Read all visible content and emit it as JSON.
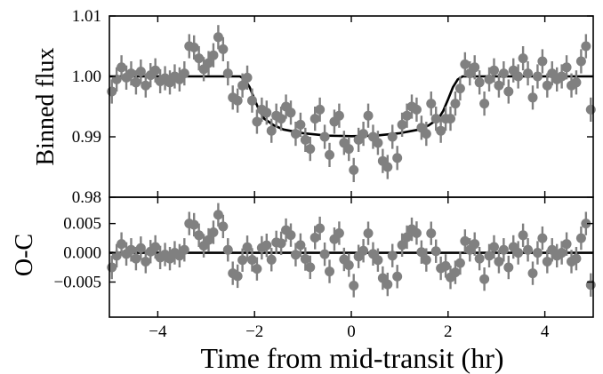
{
  "chart_data": {
    "type": "scatter",
    "xlabel": "Time from mid-transit (hr)",
    "xlim": [
      -5,
      5
    ],
    "xticks": [
      "−4",
      "−2",
      "0",
      "2",
      "4"
    ],
    "xtick_values": [
      -4,
      -2,
      0,
      2,
      4
    ],
    "colors": {
      "points": "#808080",
      "model": "#000000",
      "axes": "#000000"
    },
    "panels": [
      {
        "id": "flux",
        "ylabel": "Binned flux",
        "ylim": [
          0.98,
          1.01
        ],
        "yticks": [
          "0.98",
          "0.99",
          "1.00",
          "1.01"
        ],
        "ytick_values": [
          0.98,
          0.99,
          1.0,
          1.01
        ],
        "model_name": "transit model",
        "model": {
          "x": [
            -5.0,
            -2.3,
            -2.2,
            -2.1,
            -2.0,
            -1.9,
            -1.8,
            -1.6,
            -1.4,
            -1.0,
            -0.5,
            0.0,
            0.5,
            1.0,
            1.4,
            1.6,
            1.8,
            1.9,
            2.0,
            2.1,
            2.2,
            2.3,
            5.0
          ],
          "y": [
            1.0,
            1.0,
            0.9995,
            0.9982,
            0.9962,
            0.9943,
            0.993,
            0.9919,
            0.9912,
            0.9906,
            0.9902,
            0.9901,
            0.9902,
            0.9906,
            0.9912,
            0.9919,
            0.993,
            0.9943,
            0.9962,
            0.9982,
            0.9995,
            1.0,
            1.0
          ]
        },
        "points": {
          "x": [
            -4.95,
            -4.85,
            -4.75,
            -4.65,
            -4.55,
            -4.45,
            -4.35,
            -4.25,
            -4.15,
            -4.05,
            -3.95,
            -3.85,
            -3.75,
            -3.65,
            -3.55,
            -3.45,
            -3.35,
            -3.25,
            -3.15,
            -3.05,
            -2.95,
            -2.85,
            -2.75,
            -2.65,
            -2.55,
            -2.45,
            -2.35,
            -2.25,
            -2.15,
            -2.05,
            -1.95,
            -1.85,
            -1.75,
            -1.65,
            -1.55,
            -1.45,
            -1.35,
            -1.25,
            -1.15,
            -1.05,
            -0.95,
            -0.85,
            -0.75,
            -0.65,
            -0.55,
            -0.45,
            -0.35,
            -0.25,
            -0.15,
            -0.05,
            0.05,
            0.15,
            0.25,
            0.35,
            0.45,
            0.55,
            0.65,
            0.75,
            0.85,
            0.95,
            1.05,
            1.15,
            1.25,
            1.35,
            1.45,
            1.55,
            1.65,
            1.75,
            1.85,
            1.95,
            2.05,
            2.15,
            2.25,
            2.35,
            2.45,
            2.55,
            2.65,
            2.75,
            2.85,
            2.95,
            3.05,
            3.15,
            3.25,
            3.35,
            3.45,
            3.55,
            3.65,
            3.75,
            3.85,
            3.95,
            4.05,
            4.15,
            4.25,
            4.35,
            4.45,
            4.55,
            4.65,
            4.75,
            4.85,
            4.95
          ],
          "y": [
            0.9975,
            0.9995,
            1.0015,
            0.9998,
            1.0005,
            0.999,
            1.0008,
            0.9985,
            1.0002,
            1.001,
            0.9992,
            0.9997,
            0.999,
            1.0,
            0.9995,
            1.0005,
            1.005,
            1.0048,
            1.003,
            1.0012,
            1.0022,
            1.0035,
            1.0065,
            1.0045,
            1.0005,
            0.9965,
            0.996,
            0.9985,
            0.9998,
            0.996,
            0.9925,
            0.9945,
            0.994,
            0.991,
            0.9935,
            0.993,
            0.995,
            0.994,
            0.9905,
            0.992,
            0.9895,
            0.988,
            0.993,
            0.9945,
            0.99,
            0.987,
            0.9925,
            0.9935,
            0.989,
            0.988,
            0.9845,
            0.9895,
            0.9905,
            0.9935,
            0.99,
            0.989,
            0.986,
            0.985,
            0.99,
            0.9865,
            0.992,
            0.9935,
            0.995,
            0.9945,
            0.9915,
            0.9905,
            0.9955,
            0.993,
            0.991,
            0.993,
            0.993,
            0.9955,
            0.998,
            1.002,
            1.0005,
            1.0015,
            0.999,
            0.9955,
            0.9995,
            1.001,
            0.9985,
            1.0005,
            0.9975,
            1.001,
            1.0,
            1.003,
            1.0005,
            0.9965,
            1.0,
            1.0025,
            0.9985,
            1.0005,
            0.9995,
            1.0,
            1.0015,
            0.9985,
            0.999,
            1.0025,
            1.005,
            0.9945
          ],
          "err": [
            0.002,
            0.002,
            0.002,
            0.002,
            0.002,
            0.002,
            0.002,
            0.002,
            0.002,
            0.002,
            0.002,
            0.002,
            0.002,
            0.002,
            0.002,
            0.002,
            0.002,
            0.002,
            0.002,
            0.002,
            0.002,
            0.002,
            0.002,
            0.002,
            0.002,
            0.002,
            0.002,
            0.002,
            0.002,
            0.002,
            0.002,
            0.002,
            0.002,
            0.002,
            0.002,
            0.002,
            0.002,
            0.002,
            0.002,
            0.002,
            0.002,
            0.002,
            0.002,
            0.002,
            0.002,
            0.002,
            0.002,
            0.002,
            0.002,
            0.002,
            0.002,
            0.002,
            0.002,
            0.002,
            0.002,
            0.002,
            0.002,
            0.002,
            0.002,
            0.002,
            0.002,
            0.002,
            0.002,
            0.002,
            0.002,
            0.002,
            0.002,
            0.002,
            0.002,
            0.002,
            0.002,
            0.002,
            0.002,
            0.002,
            0.002,
            0.002,
            0.002,
            0.002,
            0.002,
            0.002,
            0.002,
            0.002,
            0.002,
            0.002,
            0.002,
            0.002,
            0.002,
            0.002,
            0.002,
            0.002,
            0.002,
            0.002,
            0.002,
            0.002,
            0.002,
            0.002,
            0.002,
            0.002,
            0.002,
            0.002
          ]
        }
      },
      {
        "id": "residuals",
        "ylabel": "O-C",
        "ylim": [
          -0.011,
          0.0095
        ],
        "yticks": [
          "−0.005",
          "0.000",
          "0.005"
        ],
        "ytick_values": [
          -0.005,
          0.0,
          0.005
        ],
        "zero_line": 0.0
      }
    ]
  }
}
